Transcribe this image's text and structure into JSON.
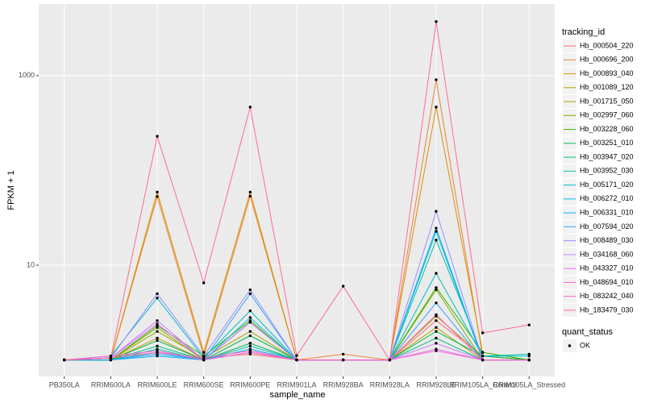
{
  "chart_data": {
    "type": "line",
    "log_y": true,
    "grid": true,
    "x_label": "sample_name",
    "y_label": "FPKM + 1",
    "legend_title": "tracking_id",
    "legend_position": "right",
    "point_legend_title": "quant_status",
    "point_legend_entries": [
      "OK"
    ],
    "point_color": "#000000",
    "categories": [
      "PB350LA",
      "RRIM600LA",
      "RRIM600LE",
      "RRIM600SE",
      "RRIM600PE",
      "RRIM901LA",
      "RRIM928BA",
      "RRIM928LA",
      "RRIM928LE",
      "RRIM105LA_Control",
      "RRIM105LA_Stressed"
    ],
    "ylim": [
      0.67,
      5700
    ],
    "yticks": [
      10,
      1000
    ],
    "series": [
      {
        "name": "Hb_000504_220",
        "color": "#F8766D",
        "values": [
          1,
          1.05,
          1.2,
          1.05,
          1.15,
          1,
          1,
          1,
          2.6,
          1.1,
          1
        ]
      },
      {
        "name": "Hb_000696_200",
        "color": "#EA8331",
        "values": [
          1,
          1,
          53,
          1.1,
          53.5,
          1,
          1.15,
          1,
          906,
          1.1,
          1
        ]
      },
      {
        "name": "Hb_000893_040",
        "color": "#D89000",
        "values": [
          1,
          1,
          59,
          1.2,
          59,
          1,
          1,
          1,
          466,
          1.2,
          1
        ]
      },
      {
        "name": "Hb_001089_120",
        "color": "#C09B00",
        "values": [
          1,
          1,
          1.7,
          1,
          1.5,
          1,
          1,
          1,
          2.2,
          1,
          1
        ]
      },
      {
        "name": "Hb_001715_050",
        "color": "#A3A500",
        "values": [
          1,
          1,
          2,
          1.05,
          2,
          1,
          1,
          1,
          2.9,
          1.1,
          1
        ]
      },
      {
        "name": "Hb_002997_060",
        "color": "#7CAE00",
        "values": [
          1,
          1,
          2.2,
          1,
          2.5,
          1,
          1,
          1,
          5.5,
          1,
          1
        ]
      },
      {
        "name": "Hb_003228_060",
        "color": "#39B600",
        "values": [
          1,
          1,
          2.3,
          1.1,
          2.6,
          1,
          1,
          1,
          5.8,
          1.2,
          1
        ]
      },
      {
        "name": "Hb_003251_010",
        "color": "#00BB4E",
        "values": [
          1,
          1,
          1.6,
          1,
          1.8,
          1,
          1,
          1,
          2,
          1.1,
          1
        ]
      },
      {
        "name": "Hb_003947_020",
        "color": "#00BF7D",
        "values": [
          1,
          1,
          1.4,
          1,
          1.5,
          1,
          1,
          1,
          1.7,
          1,
          1
        ]
      },
      {
        "name": "Hb_003952_030",
        "color": "#00C1A3",
        "values": [
          1,
          1,
          1.3,
          1,
          1.4,
          1,
          1,
          1,
          18.4,
          1.1,
          1.15
        ]
      },
      {
        "name": "Hb_005171_020",
        "color": "#00BFC4",
        "values": [
          1,
          1.1,
          4.5,
          1.05,
          3.3,
          1,
          1,
          1,
          8.2,
          1.1,
          1.1
        ]
      },
      {
        "name": "Hb_006272_010",
        "color": "#00BAE0",
        "values": [
          1,
          1,
          1.2,
          1,
          2.8,
          1,
          1,
          1,
          22.7,
          1,
          1
        ]
      },
      {
        "name": "Hb_006331_010",
        "color": "#00B0F6",
        "values": [
          1,
          1,
          1.1,
          1,
          1.3,
          1,
          1,
          1,
          24.6,
          1,
          1
        ]
      },
      {
        "name": "Hb_007594_020",
        "color": "#35A2FF",
        "values": [
          1,
          1,
          1.15,
          1,
          5,
          1,
          1,
          1,
          4,
          1,
          1
        ]
      },
      {
        "name": "Hb_008489_030",
        "color": "#9590FF",
        "values": [
          1,
          1.05,
          5,
          1.1,
          5.5,
          1,
          1,
          1,
          37,
          1,
          1
        ]
      },
      {
        "name": "Hb_034168_060",
        "color": "#C77CFF",
        "values": [
          1,
          1.05,
          2.6,
          1,
          2.5,
          1,
          1,
          1,
          1.5,
          1,
          1
        ]
      },
      {
        "name": "Hb_043327_010",
        "color": "#E76BF3",
        "values": [
          1,
          1.05,
          2.4,
          1,
          1.2,
          1,
          1,
          1,
          1.3,
          1,
          1
        ]
      },
      {
        "name": "Hb_048694_010",
        "color": "#FA62DB",
        "values": [
          1,
          1.1,
          1.25,
          1,
          1.2,
          1,
          1,
          1,
          1.25,
          1,
          1
        ]
      },
      {
        "name": "Hb_083242_040",
        "color": "#FF62BC",
        "values": [
          1,
          1.05,
          1.2,
          1.05,
          1.25,
          1,
          1,
          1,
          3,
          1,
          1
        ]
      },
      {
        "name": "Hb_183479_030",
        "color": "#FF6C91",
        "values": [
          1,
          1.05,
          229,
          6.5,
          466,
          1.11,
          6,
          1,
          3720,
          1.93,
          2.34
        ]
      }
    ]
  }
}
